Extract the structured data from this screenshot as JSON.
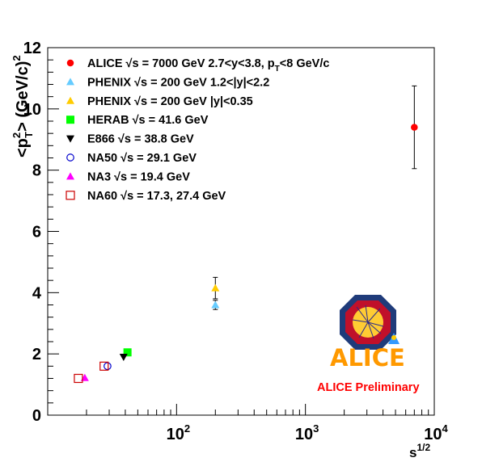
{
  "chart_data": {
    "type": "scatter",
    "title": "",
    "xlabel": {
      "base": "s",
      "sup": "1/2"
    },
    "ylabel": {
      "open": "<p",
      "sup": "2",
      "sub": "T",
      "close": "> (GeV/c)",
      "unit_sup": "2"
    },
    "x_scale": "log",
    "xlim": [
      10,
      10000
    ],
    "ylim": [
      0,
      12
    ],
    "x_ticks": [
      {
        "value": 100,
        "base": "10",
        "exp": "2"
      },
      {
        "value": 1000,
        "base": "10",
        "exp": "3"
      },
      {
        "value": 10000,
        "base": "10",
        "exp": "4"
      }
    ],
    "y_ticks": [
      "0",
      "2",
      "4",
      "6",
      "8",
      "10",
      "12"
    ],
    "grid": false,
    "legend_position": "top-left",
    "series": [
      {
        "color": "#ff0000",
        "marker": "filled-circle",
        "legend": [
          "ALICE ",
          "√s",
          " = 7000 GeV 2.7<y<3.8, p",
          "T",
          "<8 GeV/c"
        ],
        "points": [
          {
            "x": 7000,
            "y": 9.4,
            "yerr": 1.35
          }
        ]
      },
      {
        "color": "#66ccff",
        "marker": "filled-triangle-up",
        "legend": [
          "PHENIX ",
          "√s",
          " = 200 GeV 1.2<|y|<2.2"
        ],
        "points": [
          {
            "x": 200,
            "y": 3.6,
            "yerr": 0.15
          }
        ]
      },
      {
        "color": "#ffcc00",
        "marker": "filled-triangle-up",
        "legend": [
          "PHENIX ",
          "√s",
          " = 200 GeV |y|<0.35"
        ],
        "points": [
          {
            "x": 200,
            "y": 4.15,
            "yerr": 0.35
          }
        ]
      },
      {
        "color": "#00ff00",
        "marker": "filled-square",
        "legend": [
          "HERAB ",
          "√s",
          " = 41.6 GeV"
        ],
        "points": [
          {
            "x": 41.6,
            "y": 2.05,
            "yerr": 0
          }
        ]
      },
      {
        "color": "#000000",
        "marker": "filled-triangle-down",
        "legend": [
          "E866 ",
          "√s",
          " = 38.8 GeV"
        ],
        "points": [
          {
            "x": 38.8,
            "y": 1.9,
            "yerr": 0
          }
        ]
      },
      {
        "color": "#0000cc",
        "marker": "open-circle",
        "legend": [
          "NA50 ",
          "√s",
          " = 29.1 GeV"
        ],
        "points": [
          {
            "x": 29.1,
            "y": 1.6,
            "yerr": 0
          }
        ]
      },
      {
        "color": "#ff00ff",
        "marker": "filled-triangle-up",
        "legend": [
          "NA3 ",
          "√s",
          " = 19.4 GeV"
        ],
        "points": [
          {
            "x": 19.4,
            "y": 1.22,
            "yerr": 0
          }
        ]
      },
      {
        "color": "#cc0000",
        "marker": "open-square",
        "legend": [
          "NA60 ",
          "√s",
          " = 17.3, 27.4 GeV"
        ],
        "points": [
          {
            "x": 17.3,
            "y": 1.2,
            "yerr": 0
          },
          {
            "x": 27.4,
            "y": 1.6,
            "yerr": 0
          }
        ]
      }
    ],
    "annotations": {
      "logo_text": "ALICE",
      "preliminary": "ALICE Preliminary",
      "preliminary_color": "#ff0000",
      "logo_text_color": "#ff9900"
    }
  }
}
